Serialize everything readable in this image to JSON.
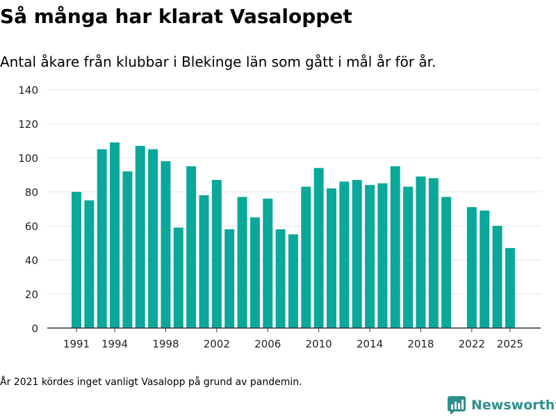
{
  "header": {
    "title": "Så många har klarat Vasaloppet",
    "subtitle": "Antal åkare från klubbar i Blekinge län som gått i mål år för år."
  },
  "footer": {
    "note": "År 2021 kördes inget vanligt Vasalopp på grund av pandemin.",
    "brand": "Newsworthy"
  },
  "colors": {
    "bar": "#0aa89b",
    "grid": "#e4e4e4",
    "axis": "#333333",
    "brand": "#2f8f8c"
  },
  "chart_data": {
    "type": "bar",
    "x": [
      1991,
      1992,
      1993,
      1994,
      1995,
      1996,
      1997,
      1998,
      1999,
      2000,
      2001,
      2002,
      2003,
      2004,
      2005,
      2006,
      2007,
      2008,
      2009,
      2010,
      2011,
      2012,
      2013,
      2014,
      2015,
      2016,
      2017,
      2018,
      2019,
      2020,
      2021,
      2022,
      2023,
      2024,
      2025
    ],
    "values": [
      80,
      75,
      105,
      109,
      92,
      107,
      105,
      98,
      59,
      95,
      78,
      87,
      58,
      77,
      65,
      76,
      58,
      55,
      83,
      94,
      82,
      86,
      87,
      84,
      85,
      95,
      83,
      89,
      88,
      77,
      null,
      71,
      69,
      60,
      47
    ],
    "x_ticks": [
      1991,
      1994,
      1998,
      2002,
      2006,
      2010,
      2014,
      2018,
      2022,
      2025
    ],
    "y_ticks": [
      0,
      20,
      40,
      60,
      80,
      100,
      120,
      140
    ],
    "ylim": [
      0,
      140
    ],
    "xlabel": "",
    "ylabel": "",
    "grid": true,
    "legend": "none"
  }
}
